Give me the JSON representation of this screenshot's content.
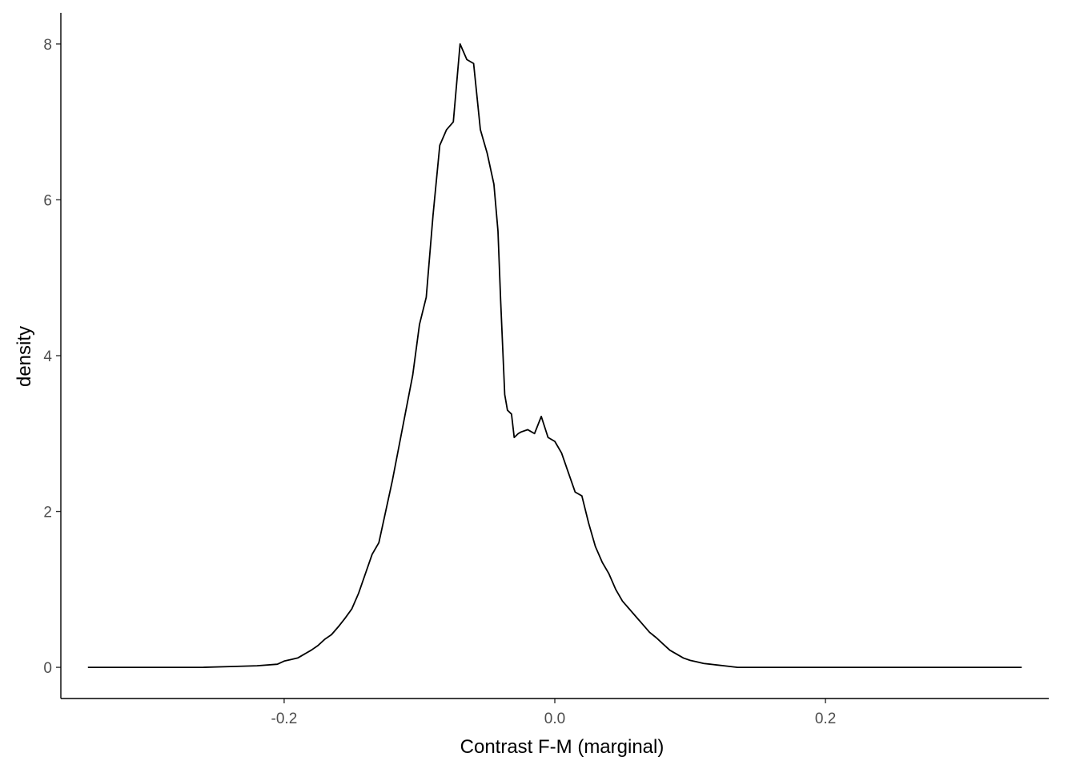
{
  "chart_data": {
    "type": "line",
    "title": "",
    "xlabel": "Contrast F-M (marginal)",
    "ylabel": "density",
    "xlim": [
      -0.365,
      0.365
    ],
    "ylim": [
      -0.4,
      8.4
    ],
    "grid": false,
    "legend": "none",
    "line_color": "#000000",
    "x_ticks": [
      {
        "value": -0.2,
        "label": "-0.2"
      },
      {
        "value": 0.0,
        "label": "0.0"
      },
      {
        "value": 0.2,
        "label": "0.2"
      }
    ],
    "y_ticks": [
      {
        "value": 0,
        "label": "0"
      },
      {
        "value": 2,
        "label": "2"
      },
      {
        "value": 4,
        "label": "4"
      },
      {
        "value": 6,
        "label": "6"
      },
      {
        "value": 8,
        "label": "8"
      }
    ],
    "series": [
      {
        "x": [
          -0.345,
          -0.3,
          -0.26,
          -0.24,
          -0.22,
          -0.205,
          -0.2,
          -0.195,
          -0.19,
          -0.185,
          -0.18,
          -0.175,
          -0.17,
          -0.165,
          -0.16,
          -0.155,
          -0.15,
          -0.145,
          -0.14,
          -0.135,
          -0.13,
          -0.125,
          -0.12,
          -0.115,
          -0.11,
          -0.105,
          -0.1,
          -0.095,
          -0.09,
          -0.085,
          -0.08,
          -0.075,
          -0.07,
          -0.065,
          -0.06,
          -0.055,
          -0.05,
          -0.045,
          -0.042,
          -0.04,
          -0.037,
          -0.035,
          -0.032,
          -0.03,
          -0.027,
          -0.025,
          -0.02,
          -0.015,
          -0.01,
          -0.005,
          0.0,
          0.005,
          0.01,
          0.015,
          0.02,
          0.025,
          0.03,
          0.035,
          0.04,
          0.045,
          0.05,
          0.055,
          0.06,
          0.065,
          0.07,
          0.075,
          0.08,
          0.085,
          0.09,
          0.095,
          0.1,
          0.105,
          0.11,
          0.115,
          0.12,
          0.125,
          0.13,
          0.135,
          0.14,
          0.145,
          0.15,
          0.155,
          0.16,
          0.165,
          0.17,
          0.175,
          0.18,
          0.19,
          0.2,
          0.21,
          0.22,
          0.23,
          0.24,
          0.25,
          0.27,
          0.3,
          0.345
        ],
        "y": [
          0.0,
          0.0,
          0.0,
          0.01,
          0.02,
          0.04,
          0.08,
          0.1,
          0.12,
          0.17,
          0.22,
          0.28,
          0.36,
          0.42,
          0.52,
          0.63,
          0.75,
          0.95,
          1.2,
          1.45,
          1.6,
          2.0,
          2.4,
          2.85,
          3.3,
          3.75,
          4.4,
          4.75,
          5.8,
          6.7,
          6.9,
          7.0,
          8.0,
          7.8,
          7.75,
          6.9,
          6.6,
          6.2,
          5.6,
          4.7,
          3.5,
          3.3,
          3.25,
          2.95,
          3.0,
          3.02,
          3.05,
          3.0,
          3.22,
          2.95,
          2.9,
          2.75,
          2.5,
          2.25,
          2.2,
          1.85,
          1.55,
          1.35,
          1.2,
          1.0,
          0.85,
          0.75,
          0.65,
          0.55,
          0.45,
          0.38,
          0.3,
          0.22,
          0.17,
          0.12,
          0.09,
          0.07,
          0.05,
          0.04,
          0.03,
          0.02,
          0.01,
          0.0,
          0.0,
          0.0,
          0.0,
          0.0,
          0.0,
          0.0,
          0.0,
          0.0,
          0.0,
          0.0,
          0.0,
          0.0,
          0.0,
          0.0,
          0.0,
          0.0,
          0.0,
          0.0,
          0.0
        ]
      }
    ]
  }
}
